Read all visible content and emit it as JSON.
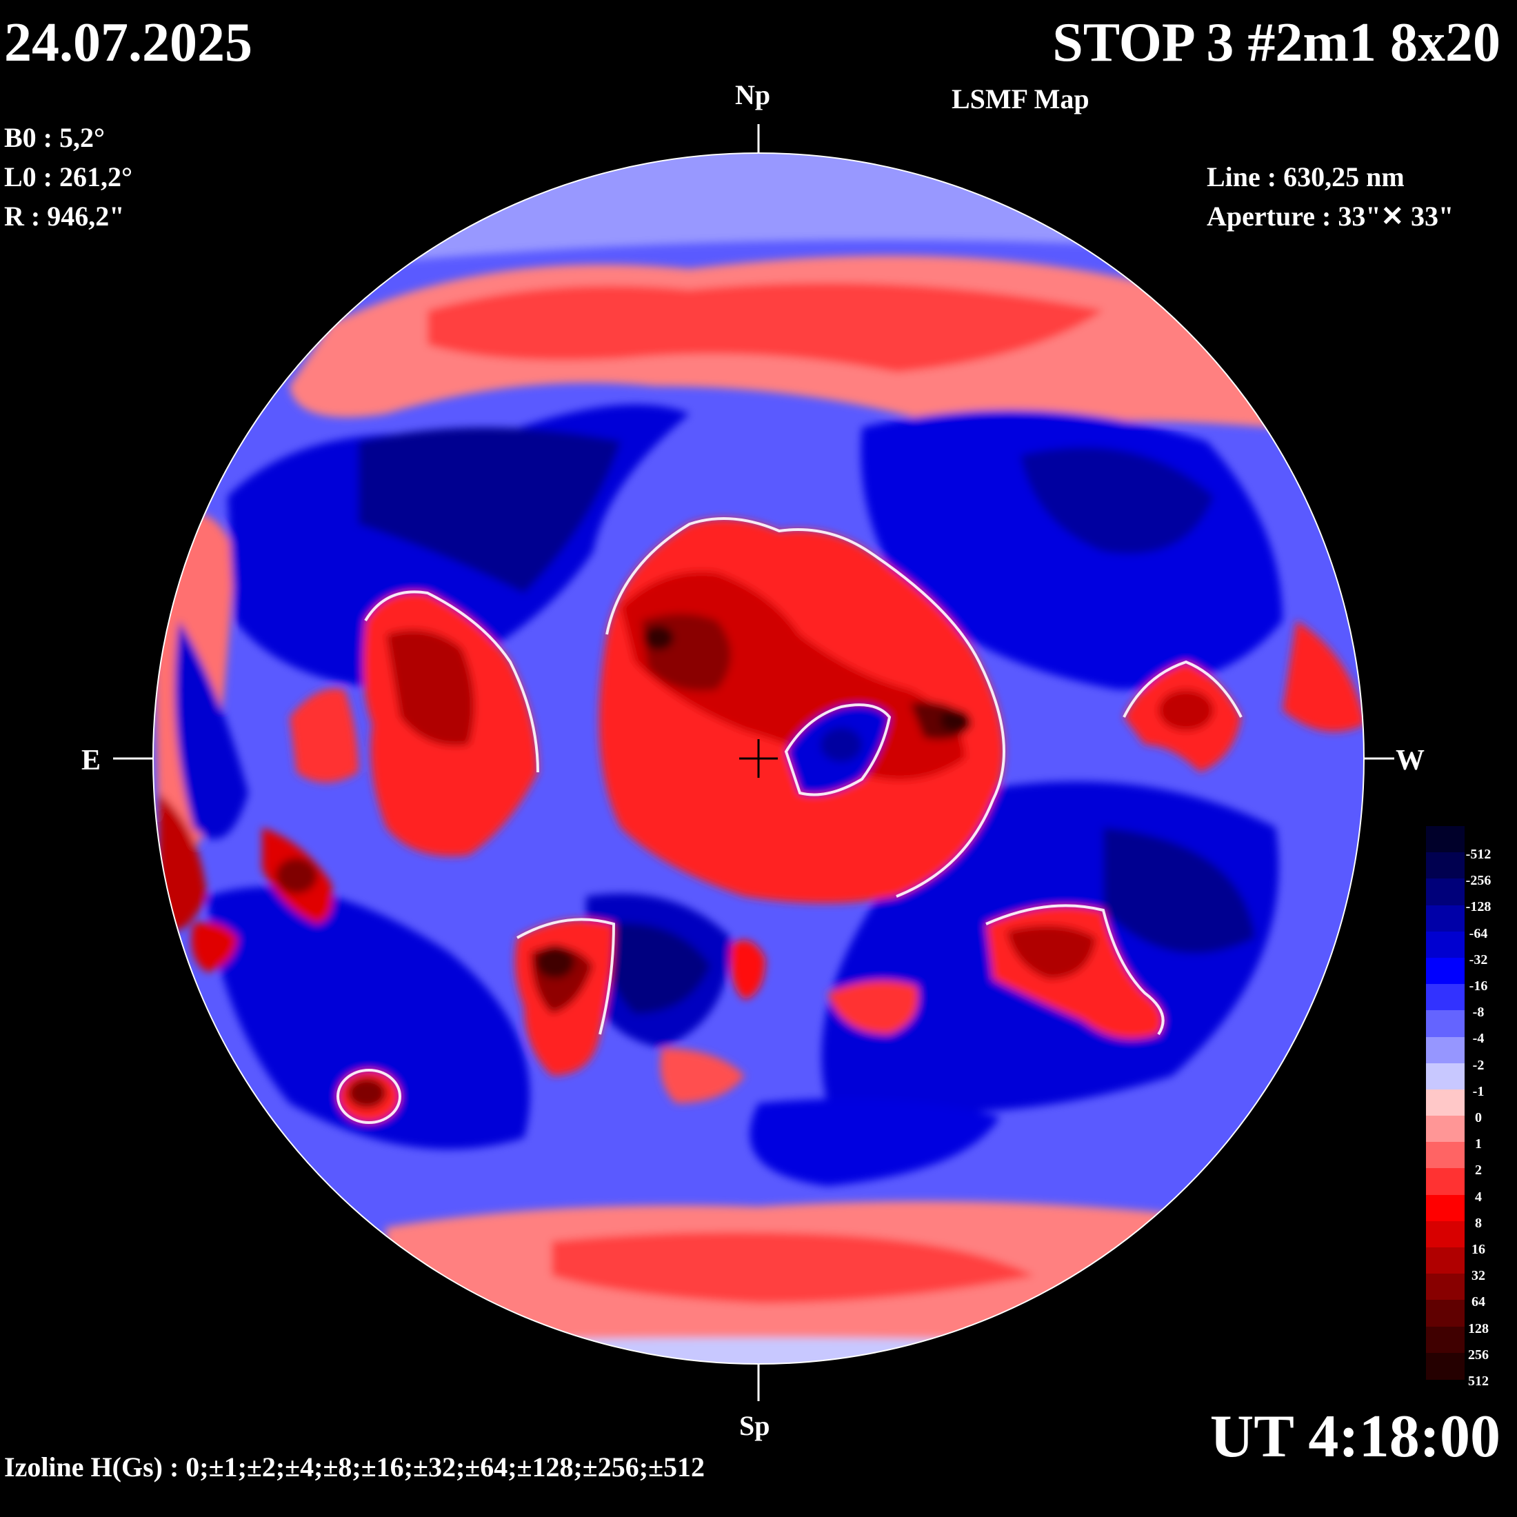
{
  "header": {
    "date": "24.07.2025",
    "title": "STOP 3 #2m1 8x20",
    "subtitle": "LSMF  Map"
  },
  "parameters": {
    "b0": "B0 : 5,2°",
    "l0": "L0 : 261,2°",
    "r": "R  : 946,2\""
  },
  "instrument": {
    "line": "Line :  630,25 nm",
    "aperture": "Aperture : 33\"✕ 33\""
  },
  "footer": {
    "time": "UT 4:18:00",
    "izoline": "Izoline H(Gs) : 0;±1;±2;±4;±8;±16;±32;±64;±128;±256;±512"
  },
  "compass": {
    "north": "Np",
    "south": "Sp",
    "east": "E",
    "west": "W"
  },
  "color_scale": {
    "labels": [
      "-512",
      "-256",
      "-128",
      "-64",
      "-32",
      "-16",
      "-8",
      "-4",
      "-2",
      "-1",
      "0",
      "1",
      "2",
      "4",
      "8",
      "16",
      "32",
      "64",
      "128",
      "256",
      "512"
    ],
    "colors": [
      "#00002a",
      "#000050",
      "#00007a",
      "#0000a8",
      "#0000d0",
      "#0000ff",
      "#3232ff",
      "#6464ff",
      "#9696ff",
      "#c8c8ff",
      "#ffc8c8",
      "#ff9696",
      "#ff6464",
      "#ff3232",
      "#ff0000",
      "#d80000",
      "#b00000",
      "#880000",
      "#600000",
      "#400000",
      "#250000"
    ]
  },
  "map": {
    "polarity_colors": {
      "negative_strong": "#000080",
      "negative": "#0000e0",
      "negative_weak": "#8080ff",
      "positive_weak": "#ff9090",
      "positive": "#ff1010",
      "positive_strong": "#900000",
      "neutral_line": "#ffffff"
    }
  }
}
